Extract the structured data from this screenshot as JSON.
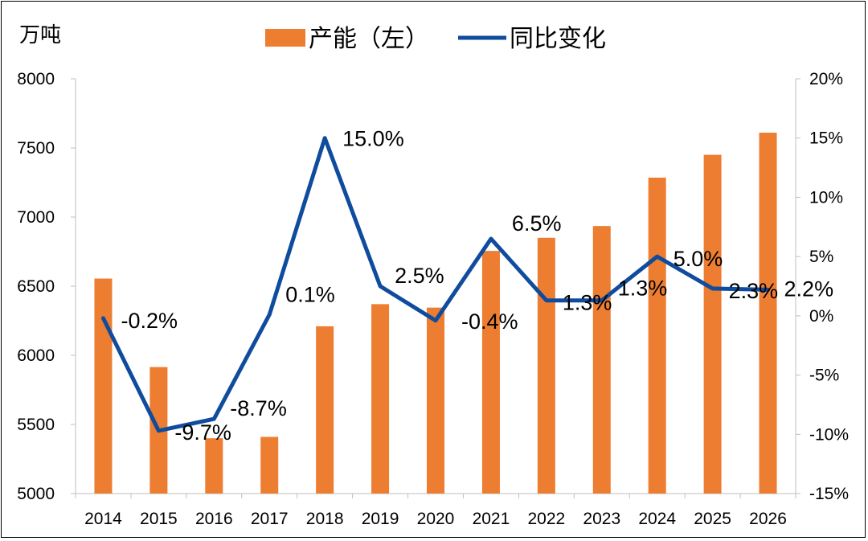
{
  "chart_data": {
    "type": "bar+line",
    "title": "",
    "y_left_unit": "万吨",
    "ylim_left": [
      5000,
      8000
    ],
    "ylim_right": [
      -15,
      20
    ],
    "grid": false,
    "legend_position": "top-center",
    "categories": [
      "2014",
      "2015",
      "2016",
      "2017",
      "2018",
      "2019",
      "2020",
      "2021",
      "2022",
      "2023",
      "2024",
      "2025",
      "2026"
    ],
    "series": [
      {
        "name": "产能（左）",
        "type": "bar",
        "axis": "left",
        "color": "#ED7D31",
        "values": [
          6555,
          5915,
          5400,
          5410,
          6210,
          6370,
          6345,
          6755,
          6850,
          6935,
          7285,
          7450,
          7610
        ]
      },
      {
        "name": "同比变化",
        "type": "line",
        "axis": "right",
        "color": "#0F4C9E",
        "values": [
          -0.2,
          -9.7,
          -8.7,
          0.1,
          15.0,
          2.5,
          -0.4,
          6.5,
          1.3,
          1.3,
          5.0,
          2.3,
          2.2
        ],
        "labels": [
          "-0.2%",
          "-9.7%",
          "-8.7%",
          "0.1%",
          "15.0%",
          "2.5%",
          "-0.4%",
          "6.5%",
          "1.3%",
          "1.3%",
          "5.0%",
          "2.3%",
          "2.2%"
        ]
      }
    ],
    "left_ticks": [
      "5000",
      "5500",
      "6000",
      "6500",
      "7000",
      "7500",
      "8000"
    ],
    "right_ticks": [
      "-15%",
      "-10%",
      "-5%",
      "0%",
      "5%",
      "10%",
      "15%",
      "20%"
    ]
  }
}
